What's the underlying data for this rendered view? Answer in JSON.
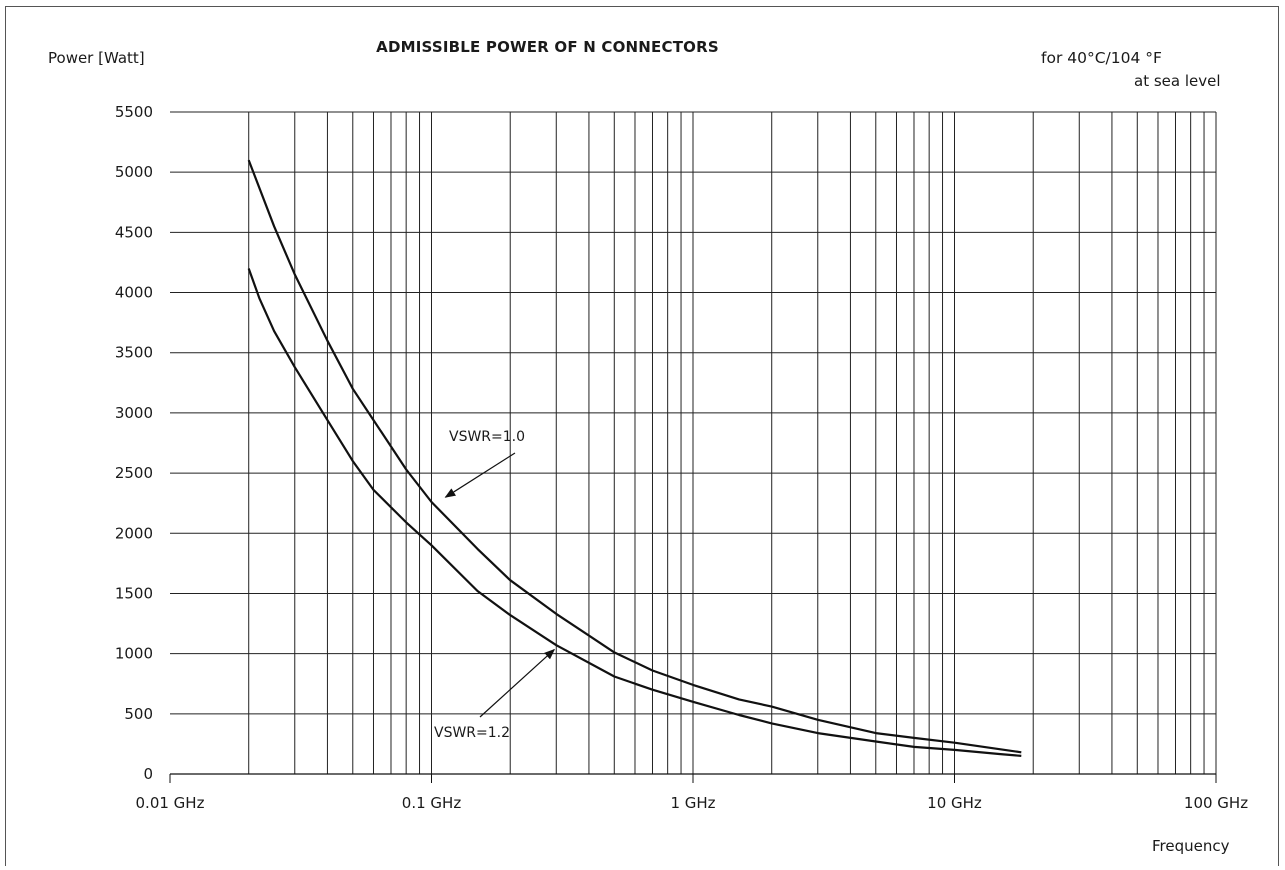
{
  "chart_data": {
    "type": "line",
    "title": "ADMISSIBLE POWER OF N CONNECTORS",
    "ylabel": "Power [Watt]",
    "xlabel": "Frequency",
    "note_line1": "for 40°C/104 °F",
    "note_line2": "at sea level",
    "x_scale": "log",
    "xlim_ghz": [
      0.01,
      100
    ],
    "ylim": [
      0,
      5500
    ],
    "grid": true,
    "x_ticks": [
      {
        "value": 0.01,
        "label": "0.01 GHz"
      },
      {
        "value": 0.1,
        "label": "0.1 GHz"
      },
      {
        "value": 1,
        "label": "1 GHz"
      },
      {
        "value": 10,
        "label": "10 GHz"
      },
      {
        "value": 100,
        "label": "100 GHz"
      }
    ],
    "y_ticks": [
      0,
      500,
      1000,
      1500,
      2000,
      2500,
      3000,
      3500,
      4000,
      4500,
      5000,
      5500
    ],
    "series": [
      {
        "name": "VSWR=1.0",
        "x_ghz": [
          0.02,
          0.025,
          0.03,
          0.04,
          0.05,
          0.06,
          0.08,
          0.1,
          0.15,
          0.2,
          0.3,
          0.5,
          0.7,
          1,
          1.5,
          2,
          3,
          5,
          7,
          10,
          15,
          18
        ],
        "y": [
          5100,
          4550,
          4150,
          3600,
          3200,
          2940,
          2530,
          2260,
          1870,
          1610,
          1330,
          1010,
          860,
          740,
          620,
          560,
          450,
          340,
          300,
          260,
          205,
          180
        ]
      },
      {
        "name": "VSWR=1.2",
        "x_ghz": [
          0.02,
          0.022,
          0.025,
          0.03,
          0.04,
          0.05,
          0.06,
          0.08,
          0.1,
          0.15,
          0.2,
          0.3,
          0.5,
          0.7,
          1,
          1.5,
          2,
          3,
          5,
          7,
          10,
          15,
          18
        ],
        "y": [
          4200,
          3950,
          3680,
          3380,
          2940,
          2600,
          2360,
          2090,
          1900,
          1520,
          1320,
          1070,
          810,
          700,
          600,
          490,
          420,
          340,
          270,
          225,
          200,
          165,
          150
        ]
      }
    ],
    "annotations": [
      {
        "text": "VSWR=1.0",
        "target_x_ghz": 0.1,
        "target_y": 2250
      },
      {
        "text": "VSWR=1.2",
        "target_x_ghz": 0.3,
        "target_y": 1100
      }
    ]
  }
}
